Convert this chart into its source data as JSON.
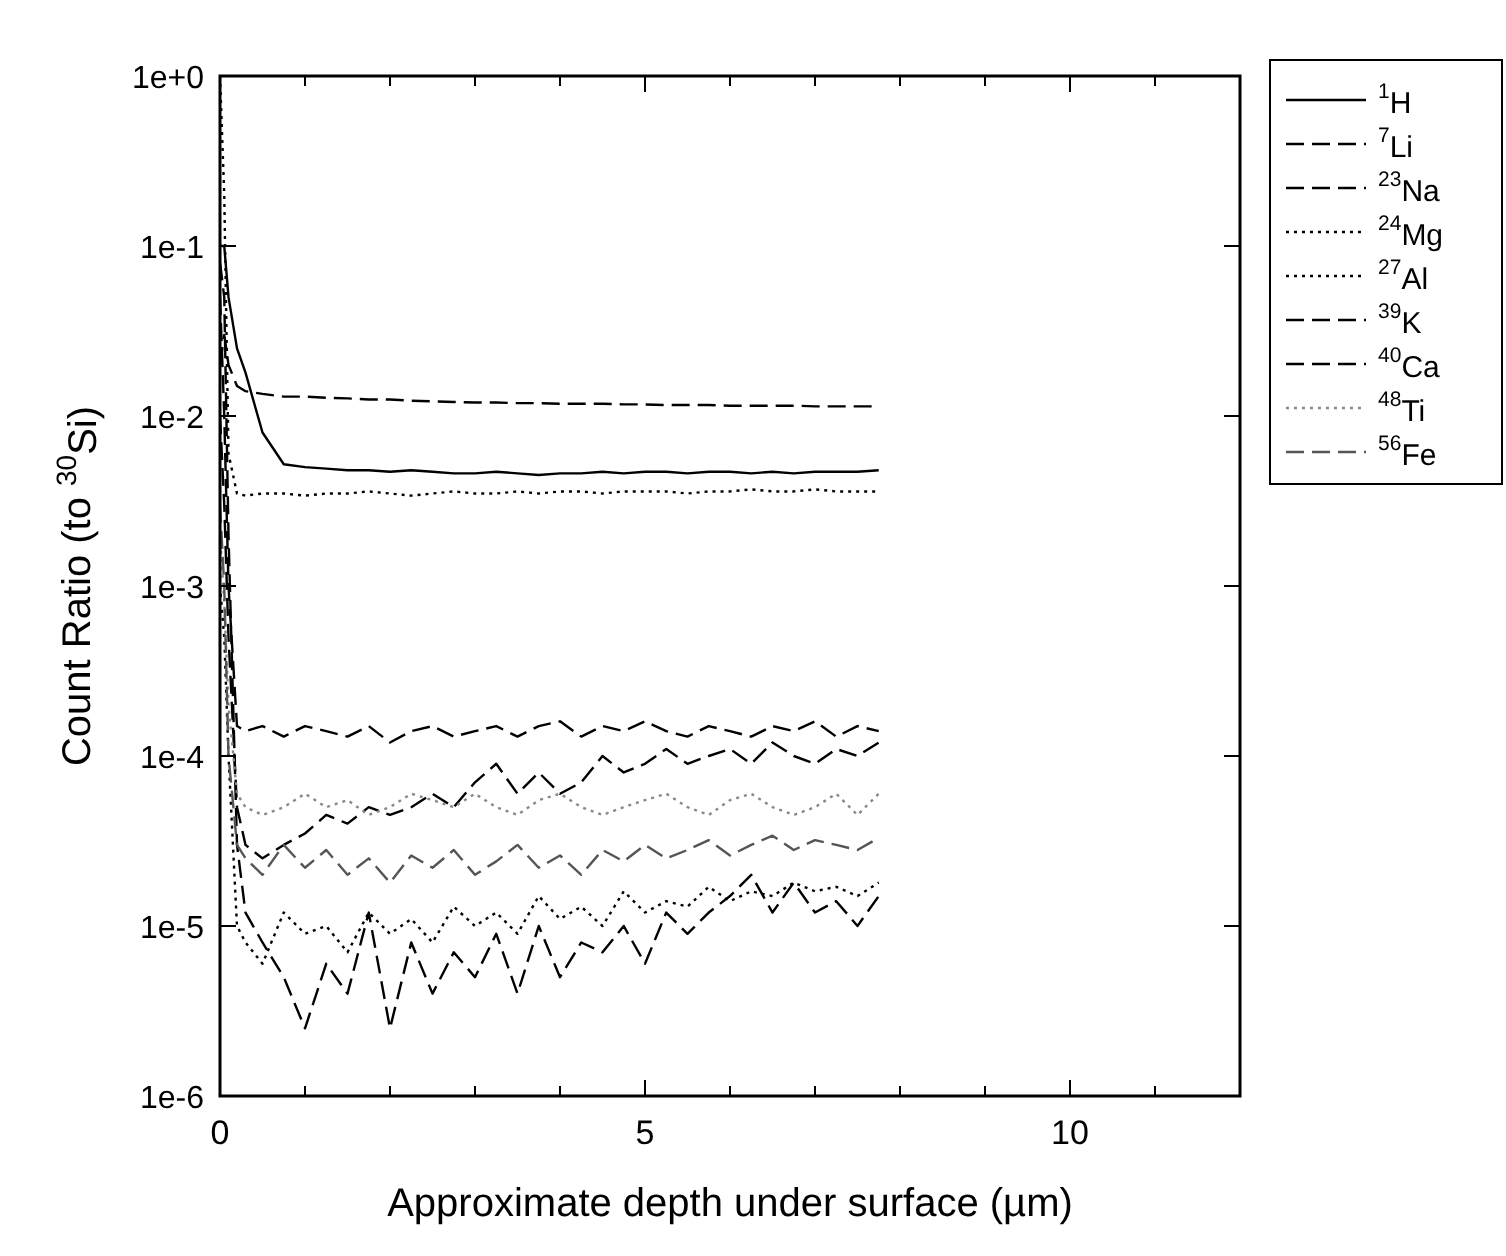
{
  "chart_data": {
    "type": "line",
    "xlabel": "Approximate depth under surface (µm)",
    "ylabel": "Count Ratio (to $^{30}$Si)",
    "log": "y",
    "grid": false,
    "legend": "top right",
    "x": [
      0,
      0.05,
      0.1,
      0.2,
      0.3,
      0.5,
      0.75,
      1,
      1.25,
      1.5,
      1.75,
      2,
      2.25,
      2.5,
      2.75,
      3,
      3.25,
      3.5,
      3.75,
      4,
      4.25,
      4.5,
      4.75,
      5,
      5.25,
      5.5,
      5.75,
      6,
      6.25,
      6.5,
      6.75,
      7,
      7.25,
      7.5,
      7.75
    ],
    "xlim": [
      0,
      12
    ],
    "ylim": [
      1e-06,
      1
    ],
    "xticks": [
      0,
      {
        "value": 1,
        "label": null
      },
      {
        "value": 2,
        "label": null
      },
      {
        "value": 3,
        "label": null
      },
      {
        "value": 4,
        "label": null
      },
      5,
      {
        "value": 6,
        "label": null
      },
      {
        "value": 7,
        "label": null
      },
      {
        "value": 8,
        "label": null
      },
      {
        "value": 9,
        "label": null
      },
      10,
      {
        "value": 11,
        "label": null
      }
    ],
    "yticks": [
      {
        "value": 1e-06,
        "label": "1e-6"
      },
      {
        "value": 1e-05,
        "label": "1e-5"
      },
      {
        "value": 0.0001,
        "label": "1e-4"
      },
      {
        "value": 0.001,
        "label": "1e-3"
      },
      {
        "value": 0.01,
        "label": "1e-2"
      },
      {
        "value": 0.1,
        "label": "1e-1"
      },
      {
        "value": 1,
        "label": "1e+0"
      }
    ],
    "series": [
      {
        "name": "$^{1}$H",
        "color": "#000000",
        "line_style": "solid",
        "values": [
          0.1,
          0.1,
          0.05,
          0.025,
          0.018,
          0.008,
          0.0052,
          0.005,
          0.0049,
          0.0048,
          0.0048,
          0.0047,
          0.0048,
          0.0047,
          0.0046,
          0.0046,
          0.0047,
          0.0046,
          0.0045,
          0.0046,
          0.0046,
          0.0047,
          0.0046,
          0.0047,
          0.0047,
          0.0046,
          0.0047,
          0.0047,
          0.0046,
          0.0047,
          0.0046,
          0.0047,
          0.0047,
          0.0047,
          0.0048
        ]
      },
      {
        "name": "$^{7}$Li",
        "color": "#000000",
        "line_style": "dashed",
        "values": [
          0.02,
          0.03,
          0.02,
          0.015,
          0.014,
          0.0135,
          0.013,
          0.013,
          0.0128,
          0.0127,
          0.0125,
          0.0125,
          0.0123,
          0.0122,
          0.0121,
          0.012,
          0.012,
          0.0119,
          0.0119,
          0.0118,
          0.0118,
          0.0118,
          0.0117,
          0.0117,
          0.0116,
          0.0116,
          0.0116,
          0.0115,
          0.0115,
          0.0115,
          0.0115,
          0.0114,
          0.0114,
          0.0114,
          0.0114
        ]
      },
      {
        "name": "$^{23}$Na",
        "color": "#000000",
        "line_style": "dashed",
        "values": [
          0.08,
          0.05,
          0.002,
          3e-05,
          1.2e-05,
          8e-06,
          5e-06,
          2.5e-06,
          6e-06,
          4e-06,
          1.2e-05,
          2.5e-06,
          8e-06,
          4e-06,
          7e-06,
          5e-06,
          9e-06,
          4e-06,
          1e-05,
          5e-06,
          8e-06,
          7e-06,
          1e-05,
          6e-06,
          1.2e-05,
          9e-06,
          1.2e-05,
          1.5e-05,
          2e-05,
          1.2e-05,
          1.8e-05,
          1.2e-05,
          1.4e-05,
          1e-05,
          1.5e-05
        ]
      },
      {
        "name": "$^{24}$Mg",
        "color": "#000000",
        "line_style": "dotted",
        "values": [
          0.001,
          0.0005,
          0.0001,
          1e-05,
          8e-06,
          6e-06,
          1.2e-05,
          9e-06,
          1e-05,
          7e-06,
          1.2e-05,
          9e-06,
          1.1e-05,
          8e-06,
          1.3e-05,
          1e-05,
          1.2e-05,
          9e-06,
          1.5e-05,
          1.1e-05,
          1.3e-05,
          1e-05,
          1.6e-05,
          1.2e-05,
          1.4e-05,
          1.3e-05,
          1.7e-05,
          1.4e-05,
          1.6e-05,
          1.5e-05,
          1.8e-05,
          1.6e-05,
          1.7e-05,
          1.5e-05,
          1.8e-05
        ]
      },
      {
        "name": "$^{27}$Al",
        "color": "#000000",
        "line_style": "dotted",
        "values": [
          1,
          0.2,
          0.006,
          0.0035,
          0.0034,
          0.0035,
          0.0035,
          0.0034,
          0.0035,
          0.0035,
          0.0036,
          0.0035,
          0.0034,
          0.0035,
          0.0036,
          0.0035,
          0.0035,
          0.0036,
          0.0035,
          0.0036,
          0.0036,
          0.0035,
          0.0036,
          0.0036,
          0.0036,
          0.0035,
          0.0036,
          0.0036,
          0.0037,
          0.0036,
          0.0036,
          0.0037,
          0.0036,
          0.0036,
          0.0036
        ]
      },
      {
        "name": "$^{39}$K",
        "color": "#000000",
        "line_style": "dashed",
        "values": [
          0.05,
          0.01,
          0.001,
          0.00015,
          0.00014,
          0.00015,
          0.00013,
          0.00015,
          0.00014,
          0.00013,
          0.00015,
          0.00012,
          0.00014,
          0.00015,
          0.00013,
          0.00014,
          0.00015,
          0.00013,
          0.00015,
          0.00016,
          0.00013,
          0.00015,
          0.00014,
          0.00016,
          0.00014,
          0.00013,
          0.00015,
          0.00014,
          0.00013,
          0.00015,
          0.00014,
          0.00016,
          0.00013,
          0.00015,
          0.00014
        ]
      },
      {
        "name": "$^{40}$Ca",
        "color": "#000000",
        "line_style": "dashed",
        "values": [
          0.01,
          0.003,
          0.0005,
          5e-05,
          3e-05,
          2.5e-05,
          3e-05,
          3.5e-05,
          4.5e-05,
          4e-05,
          5e-05,
          4.5e-05,
          5e-05,
          6e-05,
          5e-05,
          7e-05,
          9e-05,
          6e-05,
          8e-05,
          6e-05,
          7e-05,
          0.0001,
          8e-05,
          9e-05,
          0.00011,
          9e-05,
          0.0001,
          0.00011,
          9e-05,
          0.00012,
          0.0001,
          9e-05,
          0.00011,
          0.0001,
          0.00012
        ]
      },
      {
        "name": "$^{48}$Ti",
        "color": "#888888",
        "line_style": "dotted",
        "values": [
          0.002,
          0.0008,
          0.0002,
          6e-05,
          5e-05,
          4.5e-05,
          5e-05,
          6e-05,
          5e-05,
          5.5e-05,
          4.5e-05,
          5e-05,
          6e-05,
          5.5e-05,
          5e-05,
          6e-05,
          5e-05,
          4.5e-05,
          5.5e-05,
          6e-05,
          5e-05,
          4.5e-05,
          5e-05,
          5.5e-05,
          6e-05,
          5e-05,
          4.5e-05,
          5.5e-05,
          6e-05,
          5e-05,
          4.5e-05,
          5e-05,
          6e-05,
          4.5e-05,
          6e-05
        ]
      },
      {
        "name": "$^{56}$Fe",
        "color": "#555555",
        "line_style": "dashed",
        "values": [
          0.003,
          0.001,
          0.0001,
          3e-05,
          2.5e-05,
          2e-05,
          3e-05,
          2.2e-05,
          2.8e-05,
          2e-05,
          2.5e-05,
          1.8e-05,
          2.6e-05,
          2.2e-05,
          2.8e-05,
          2e-05,
          2.4e-05,
          3e-05,
          2.2e-05,
          2.6e-05,
          2e-05,
          2.8e-05,
          2.4e-05,
          3e-05,
          2.5e-05,
          2.8e-05,
          3.2e-05,
          2.6e-05,
          3e-05,
          3.4e-05,
          2.8e-05,
          3.2e-05,
          3e-05,
          2.8e-05,
          3.3e-05
        ]
      }
    ]
  }
}
